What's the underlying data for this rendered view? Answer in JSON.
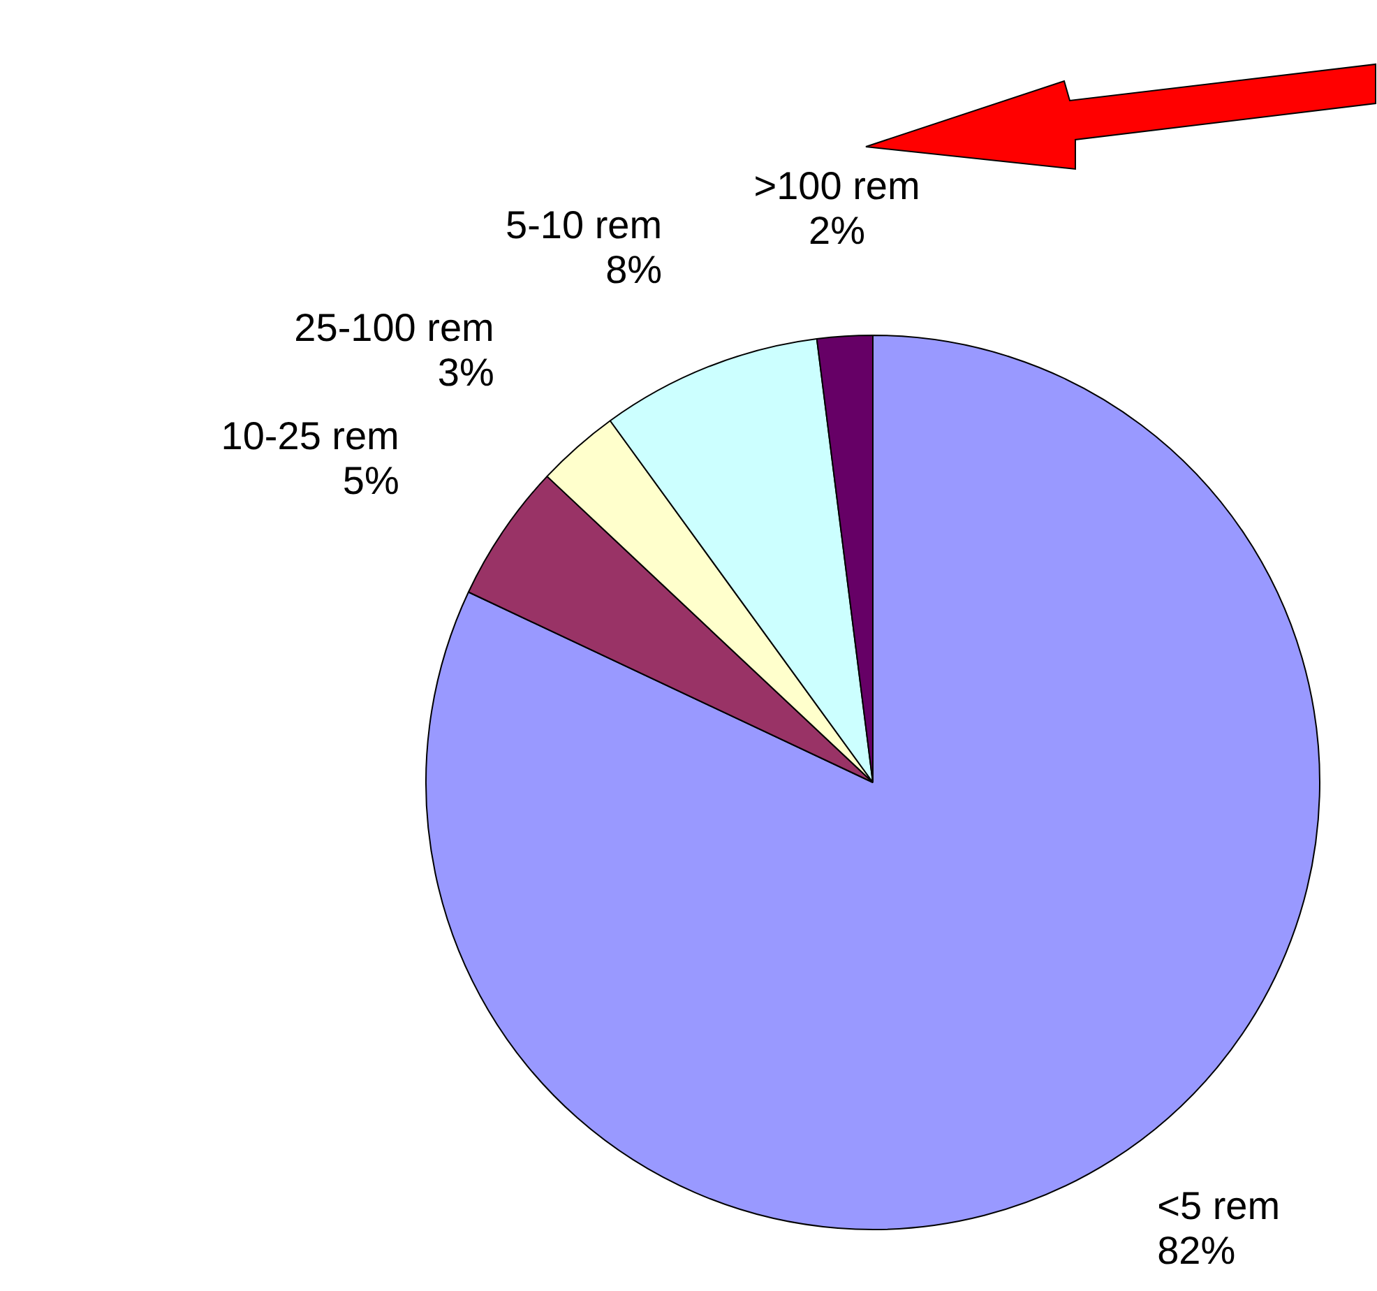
{
  "chart_data": {
    "type": "pie",
    "categories": [
      "<5 rem",
      "10-25 rem",
      "25-100 rem",
      "5-10 rem",
      ">100 rem"
    ],
    "values": [
      82,
      5,
      3,
      8,
      2
    ],
    "value_labels": [
      "82%",
      "5%",
      "3%",
      "8%",
      "2%"
    ],
    "colors": [
      "#9999ff",
      "#993366",
      "#ffffcc",
      "#ccffff",
      "#660066"
    ]
  }
}
